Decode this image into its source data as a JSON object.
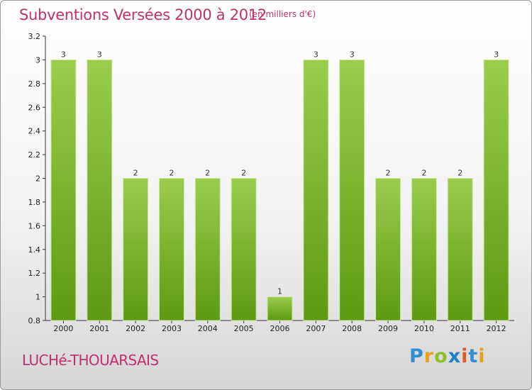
{
  "header": {
    "title": "Subventions Versées 2000 à 2012",
    "subtitle": "(en milliers d'€)"
  },
  "footer": {
    "place": "LUCHé-THOUARSAIS",
    "logo_letters": [
      "P",
      "r",
      "o",
      "x",
      "i",
      "t",
      "i"
    ]
  },
  "colors": {
    "title": "#c0306d",
    "bar_light": "#9acd4c",
    "bar_dark": "#5d9a12"
  },
  "chart_data": {
    "type": "bar",
    "title": "Subventions Versées 2000 à 2012",
    "subtitle": "(en milliers d'€)",
    "categories": [
      "2000",
      "2001",
      "2002",
      "2003",
      "2004",
      "2005",
      "2006",
      "2007",
      "2008",
      "2009",
      "2010",
      "2011",
      "2012"
    ],
    "values": [
      3,
      3,
      2,
      2,
      2,
      2,
      1,
      3,
      3,
      2,
      2,
      2,
      3
    ],
    "data_labels": [
      "3",
      "3",
      "2",
      "2",
      "2",
      "2",
      "1",
      "3",
      "3",
      "2",
      "2",
      "2",
      "3"
    ],
    "y_tick_labels": [
      "0.8",
      "1",
      "1.2",
      "1.4",
      "1.6",
      "1.8",
      "2",
      "2.2",
      "2.4",
      "2.6",
      "2.8",
      "3",
      "3.2"
    ],
    "y_tick_values": [
      0.8,
      1,
      1.2,
      1.4,
      1.6,
      1.8,
      2,
      2.2,
      2.4,
      2.6,
      2.8,
      3,
      3.2
    ],
    "ylim": [
      0.8,
      3.2
    ],
    "xlabel": "",
    "ylabel": "",
    "grid": false,
    "legend": "none"
  }
}
